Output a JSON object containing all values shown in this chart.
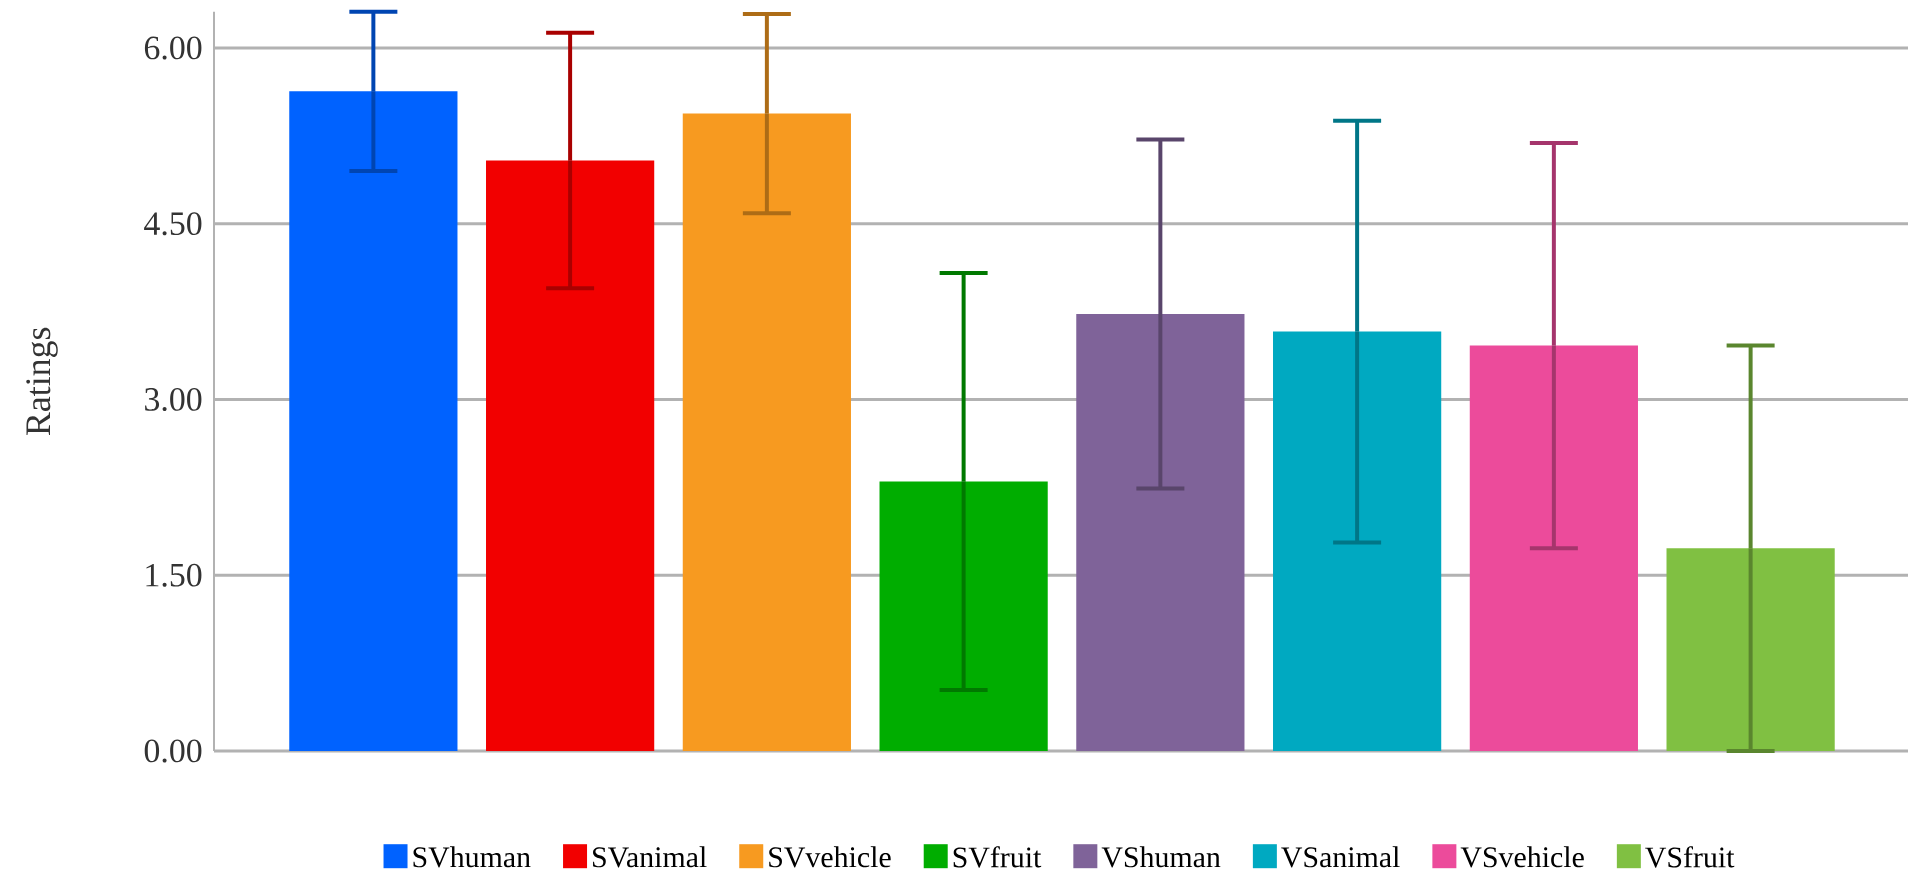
{
  "chart_data": {
    "type": "bar",
    "ylabel": "Ratings",
    "categories": [
      null,
      null,
      null,
      null,
      null,
      null,
      null,
      null
    ],
    "series": [
      {
        "name": "SVhuman",
        "color": "#0062ff",
        "values": [
          5.63,
          null,
          null,
          null,
          null,
          null,
          null,
          null
        ],
        "errors": [
          0.68,
          null,
          null,
          null,
          null,
          null,
          null,
          null
        ]
      },
      {
        "name": "SVanimal",
        "color": "#f20000",
        "values": [
          null,
          5.04,
          null,
          null,
          null,
          null,
          null,
          null
        ],
        "errors": [
          null,
          1.09,
          null,
          null,
          null,
          null,
          null,
          null
        ]
      },
      {
        "name": "SVvehicle",
        "color": "#f79a20",
        "values": [
          null,
          null,
          5.44,
          null,
          null,
          null,
          null,
          null
        ],
        "errors": [
          null,
          null,
          0.85,
          null,
          null,
          null,
          null,
          null
        ]
      },
      {
        "name": "SVfruit",
        "color": "#00ad00",
        "values": [
          null,
          null,
          null,
          2.3,
          null,
          null,
          null,
          null
        ],
        "errors": [
          null,
          null,
          null,
          1.78,
          null,
          null,
          null,
          null
        ]
      },
      {
        "name": "VShuman",
        "color": "#7f6399",
        "values": [
          null,
          null,
          null,
          null,
          3.73,
          null,
          null,
          null
        ],
        "errors": [
          null,
          null,
          null,
          null,
          1.49,
          null,
          null,
          null
        ]
      },
      {
        "name": "VSanimal",
        "color": "#00a9c1",
        "values": [
          null,
          null,
          null,
          null,
          null,
          3.58,
          null,
          null
        ],
        "errors": [
          null,
          null,
          null,
          null,
          null,
          1.8,
          null,
          null
        ]
      },
      {
        "name": "VSvehicle",
        "color": "#ec4b9b",
        "values": [
          null,
          null,
          null,
          null,
          null,
          null,
          3.46,
          null
        ],
        "errors": [
          null,
          null,
          null,
          null,
          null,
          null,
          1.73,
          null
        ]
      },
      {
        "name": "VSfruit",
        "color": "#80c042",
        "values": [
          null,
          null,
          null,
          null,
          null,
          null,
          null,
          1.73
        ],
        "errors": [
          null,
          null,
          null,
          null,
          null,
          null,
          null,
          1.73
        ]
      }
    ],
    "yticks": [
      {
        "value": 0,
        "label": "0.00"
      },
      {
        "value": 1.5,
        "label": "1.50"
      },
      {
        "value": 3,
        "label": "3.00"
      },
      {
        "value": 4.5,
        "label": "4.50"
      },
      {
        "value": 6,
        "label": "6.00"
      }
    ],
    "ylim": [
      0,
      6.31
    ],
    "grid": "y",
    "legend": "bottom"
  }
}
